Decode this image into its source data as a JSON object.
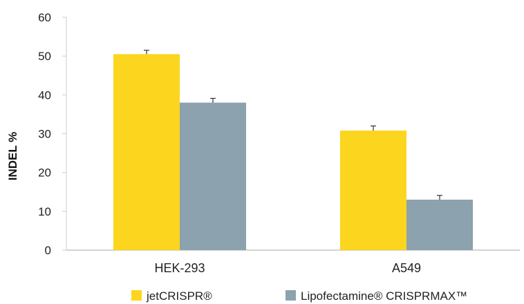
{
  "chart_data": {
    "type": "bar",
    "categories": [
      "HEK-293",
      "A549"
    ],
    "series": [
      {
        "name": "jetCRISPR®",
        "values": [
          50.5,
          30.8
        ],
        "errors": [
          1.0,
          1.2
        ],
        "color": "#FCD51F"
      },
      {
        "name": "Lipofectamine® CRISPRMAX™",
        "values": [
          38.0,
          13.0
        ],
        "errors": [
          1.1,
          1.1
        ],
        "color": "#8CA2AE"
      }
    ],
    "xlabel": "",
    "ylabel": "INDEL %",
    "ylim": [
      0,
      60
    ],
    "yticks": [
      0,
      10,
      20,
      30,
      40,
      50,
      60
    ],
    "grid": false,
    "legend": "bottom"
  }
}
